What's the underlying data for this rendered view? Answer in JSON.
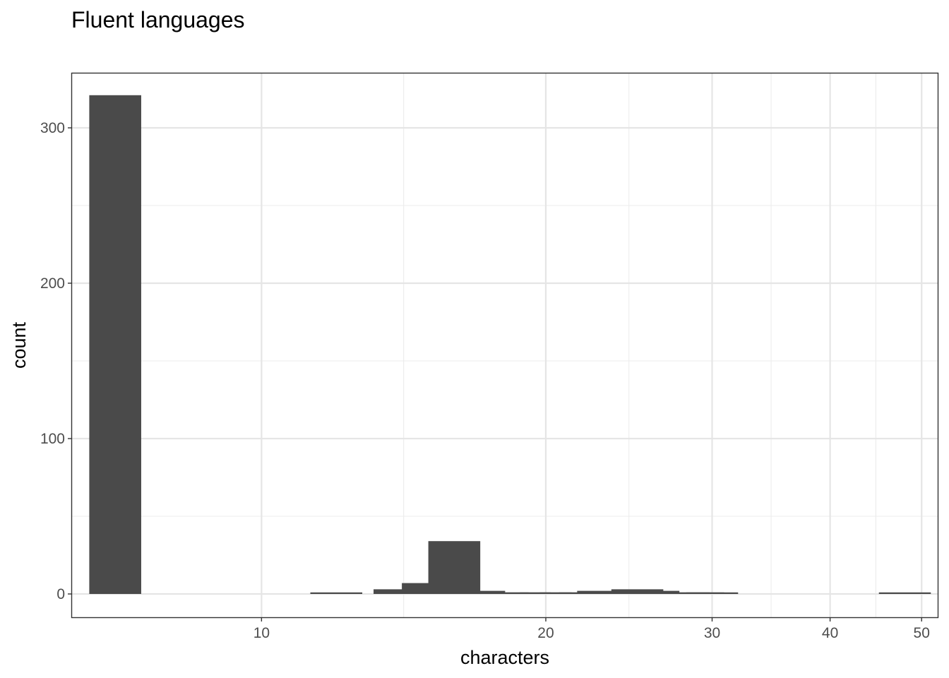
{
  "chart_data": {
    "type": "bar",
    "title": "Fluent languages",
    "xlabel": "characters",
    "ylabel": "count",
    "x_scale": "log10",
    "xlim": [
      6.3,
      52
    ],
    "ylim": [
      -15,
      335
    ],
    "x_ticks": [
      10,
      20,
      30,
      40,
      50
    ],
    "y_ticks": [
      0,
      100,
      200,
      300
    ],
    "grid": true,
    "bar_color": "#4a4a4a",
    "x": [
      7,
      12,
      14,
      15,
      16,
      17,
      18,
      19,
      20,
      21,
      22,
      23,
      24,
      25,
      26,
      28,
      29,
      30,
      48
    ],
    "values": [
      321,
      1,
      3,
      7,
      34,
      2,
      1,
      1,
      1,
      1,
      1,
      2,
      1,
      3,
      2,
      1,
      1,
      1,
      1
    ]
  }
}
